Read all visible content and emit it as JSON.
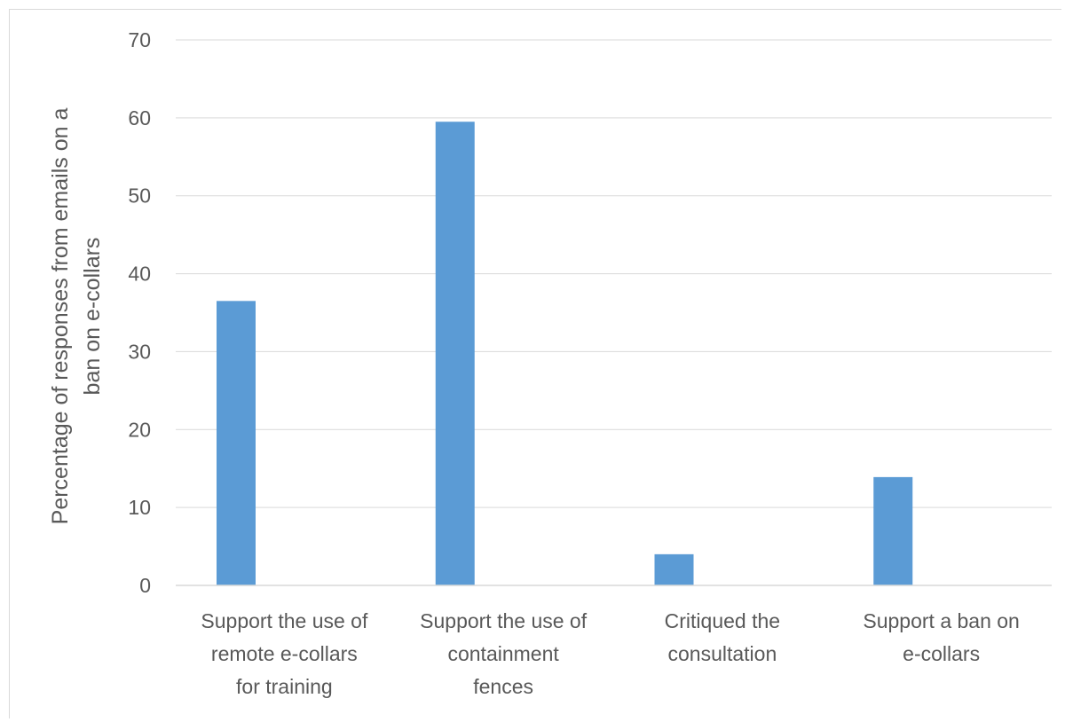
{
  "chart_data": {
    "type": "bar",
    "title": "",
    "xlabel": "",
    "ylabel_lines": [
      "Percentage of responses from emails on a",
      "ban on e-collars"
    ],
    "categories": [
      [
        "Support the use of",
        "remote e-collars",
        "for training"
      ],
      [
        "Support the use of",
        "containment",
        "fences"
      ],
      [
        "Critiqued the",
        "consultation"
      ],
      [
        "Support a ban on",
        "e-collars"
      ]
    ],
    "series": [
      {
        "values": [
          36.5,
          59.5,
          4.0,
          13.9
        ],
        "color": "#5b9bd5"
      }
    ],
    "ylim": [
      0,
      70
    ],
    "yticks": [
      0,
      10,
      20,
      30,
      40,
      50,
      60,
      70
    ],
    "grid": true,
    "gridline_color": "#d9d9d9",
    "legend": "none"
  }
}
